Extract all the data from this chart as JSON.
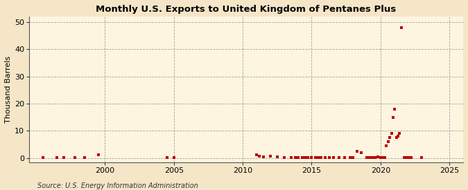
{
  "title": "Monthly U.S. Exports to United Kingdom of Pentanes Plus",
  "ylabel": "Thousand Barrels",
  "source": "Source: U.S. Energy Information Administration",
  "background_color": "#f5e6c8",
  "plot_background_color": "#fdf5e0",
  "marker_color": "#bb0000",
  "grid_color": "#999999",
  "xlim": [
    1994.5,
    2026
  ],
  "ylim": [
    -1.5,
    52
  ],
  "yticks": [
    0,
    10,
    20,
    30,
    40,
    50
  ],
  "xticks": [
    2000,
    2005,
    2010,
    2015,
    2020,
    2025
  ],
  "data_points": [
    [
      1995.5,
      0.2
    ],
    [
      1996.5,
      0.2
    ],
    [
      1997.0,
      0.2
    ],
    [
      1997.8,
      0.3
    ],
    [
      1998.5,
      0.2
    ],
    [
      1999.5,
      1.3
    ],
    [
      2004.5,
      0.3
    ],
    [
      2005.0,
      0.3
    ],
    [
      2011.0,
      1.3
    ],
    [
      2011.2,
      0.7
    ],
    [
      2011.5,
      0.5
    ],
    [
      2012.0,
      0.8
    ],
    [
      2012.5,
      0.4
    ],
    [
      2013.0,
      0.3
    ],
    [
      2013.5,
      0.3
    ],
    [
      2013.8,
      0.3
    ],
    [
      2014.0,
      0.3
    ],
    [
      2014.3,
      0.3
    ],
    [
      2014.5,
      0.3
    ],
    [
      2014.7,
      0.3
    ],
    [
      2015.0,
      0.3
    ],
    [
      2015.3,
      0.3
    ],
    [
      2015.5,
      0.3
    ],
    [
      2015.7,
      0.3
    ],
    [
      2016.0,
      0.3
    ],
    [
      2016.3,
      0.3
    ],
    [
      2016.6,
      0.3
    ],
    [
      2017.0,
      0.3
    ],
    [
      2017.4,
      0.3
    ],
    [
      2017.8,
      0.3
    ],
    [
      2018.0,
      0.3
    ],
    [
      2018.3,
      2.5
    ],
    [
      2018.6,
      2.0
    ],
    [
      2019.0,
      0.3
    ],
    [
      2019.2,
      0.3
    ],
    [
      2019.4,
      0.3
    ],
    [
      2019.6,
      0.3
    ],
    [
      2019.8,
      0.5
    ],
    [
      2020.0,
      0.3
    ],
    [
      2020.1,
      0.3
    ],
    [
      2020.2,
      0.3
    ],
    [
      2020.3,
      0.3
    ],
    [
      2020.4,
      4.5
    ],
    [
      2020.55,
      6.0
    ],
    [
      2020.65,
      7.5
    ],
    [
      2020.8,
      9.0
    ],
    [
      2020.92,
      15.0
    ],
    [
      2021.0,
      18.0
    ],
    [
      2021.15,
      7.5
    ],
    [
      2021.25,
      8.0
    ],
    [
      2021.35,
      9.0
    ],
    [
      2021.5,
      48.0
    ],
    [
      2021.7,
      0.3
    ],
    [
      2021.8,
      0.3
    ],
    [
      2022.0,
      0.3
    ],
    [
      2022.2,
      0.3
    ],
    [
      2023.0,
      0.3
    ]
  ]
}
